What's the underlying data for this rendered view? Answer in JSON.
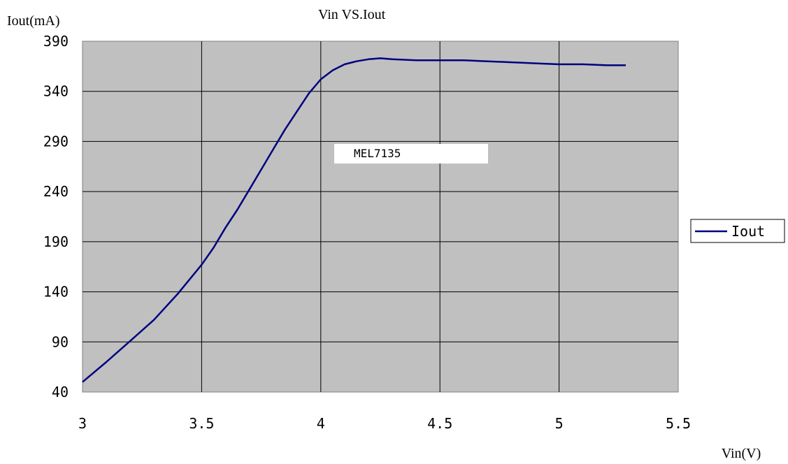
{
  "chart_data": {
    "type": "line",
    "title": "Vin VS.Iout",
    "xlabel": "Vin(V)",
    "ylabel": "Iout(mA)",
    "xlim": [
      3,
      5.5
    ],
    "ylim": [
      40,
      390
    ],
    "x_ticks": [
      "3",
      "3.5",
      "4",
      "4.5",
      "5",
      "5.5"
    ],
    "y_ticks": [
      "390",
      "340",
      "290",
      "240",
      "190",
      "140",
      "90",
      "40"
    ],
    "grid": true,
    "legend_position": "right",
    "annotation": "MEL7135",
    "series": [
      {
        "name": "Iout",
        "color": "#000080",
        "x": [
          3.0,
          3.1,
          3.2,
          3.3,
          3.4,
          3.5,
          3.55,
          3.6,
          3.65,
          3.7,
          3.75,
          3.8,
          3.85,
          3.9,
          3.95,
          4.0,
          4.05,
          4.1,
          4.15,
          4.2,
          4.25,
          4.3,
          4.4,
          4.5,
          4.6,
          4.7,
          4.8,
          4.9,
          5.0,
          5.1,
          5.2,
          5.28
        ],
        "y": [
          50,
          70,
          91,
          112,
          138,
          167,
          184,
          204,
          222,
          242,
          262,
          282,
          302,
          320,
          338,
          352,
          361,
          367,
          370,
          372,
          373,
          372,
          371,
          371,
          371,
          370,
          369,
          368,
          367,
          367,
          366,
          366
        ]
      }
    ]
  }
}
